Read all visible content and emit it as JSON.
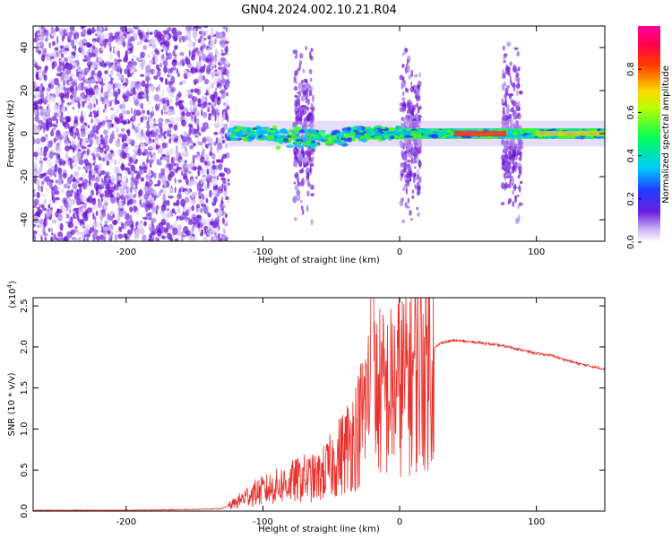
{
  "title": "GN04.2024.002.10.21.R04",
  "colors": {
    "spectrum_dots": "#7a1fd6",
    "snr_line": "#e8302b",
    "axis": "#000000",
    "background": "#ffffff"
  },
  "chart_data": [
    {
      "type": "heatmap",
      "xlabel": "Height of straight line (km)",
      "ylabel": "Frequency (Hz)",
      "xlim": [
        -268,
        150
      ],
      "ylim": [
        -50,
        50
      ],
      "x_ticks": [
        -200,
        -100,
        0,
        100
      ],
      "x_tick_labels": [
        "-200",
        "-100",
        "0",
        "100"
      ],
      "y_ticks": [
        -40,
        -20,
        0,
        20,
        40
      ],
      "y_tick_labels": [
        "-40",
        "-20",
        "0",
        "20",
        "40"
      ],
      "colorbar": {
        "label": "Normalized spectral amplitude",
        "range": [
          0,
          1
        ],
        "ticks": [
          0.0,
          0.2,
          0.4,
          0.6,
          0.8
        ],
        "tick_labels": [
          "0.0",
          "0.2",
          "0.4",
          "0.6",
          "0.8"
        ],
        "colormap": "rainbow (purple-blue-cyan-green-yellow-red-magenta)"
      },
      "features": {
        "noise_region_km": [
          -268,
          -125
        ],
        "carrier_band_hz": [
          -3,
          3
        ],
        "vertical_spike_bursts_km": [
          -70,
          8,
          82
        ]
      }
    },
    {
      "type": "line",
      "xlabel": "Height of straight line (km)",
      "ylabel": "SNR (10 * v/v)",
      "y_multiplier": "(x10",
      "y_multiplier_exponent": "4",
      "xlim": [
        -268,
        150
      ],
      "ylim": [
        0,
        2.6
      ],
      "x_ticks": [
        -200,
        -100,
        0,
        100
      ],
      "x_tick_labels": [
        "-200",
        "-100",
        "0",
        "100"
      ],
      "y_ticks": [
        0.0,
        0.5,
        1.0,
        1.5,
        2.0,
        2.5
      ],
      "y_tick_labels": [
        "0.0",
        "0.5",
        "1.0",
        "1.5",
        "2.0",
        "2.5"
      ],
      "series": [
        {
          "x": [
            -268,
            -200,
            -150,
            -130,
            -120,
            -110,
            -100,
            -90,
            -80,
            -70,
            -60,
            -50,
            -40,
            -30,
            -25,
            -20,
            -10,
            0,
            10,
            20,
            30,
            40,
            60,
            80,
            100,
            110,
            130,
            150
          ],
          "y": [
            0.01,
            0.01,
            0.02,
            0.03,
            0.1,
            0.2,
            0.25,
            0.3,
            0.35,
            0.4,
            0.4,
            0.55,
            0.75,
            1.0,
            1.3,
            1.5,
            1.4,
            1.55,
            1.7,
            1.9,
            2.05,
            2.08,
            2.05,
            2.0,
            1.92,
            1.9,
            1.8,
            1.73
          ]
        }
      ]
    }
  ]
}
